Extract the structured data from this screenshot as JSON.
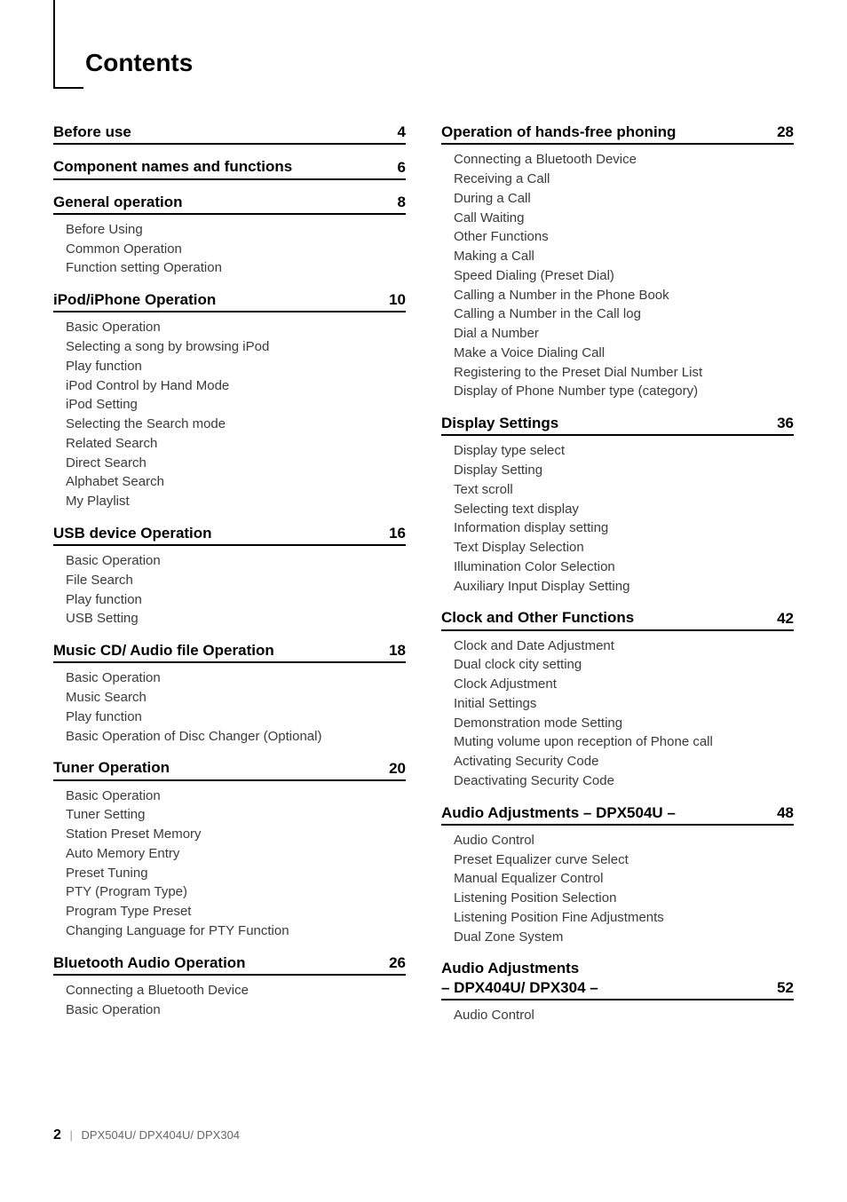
{
  "title": "Contents",
  "page_number": "2",
  "footer_models": "DPX504U/ DPX404U/ DPX304",
  "left": [
    {
      "title": "Before use",
      "page": "4",
      "items": []
    },
    {
      "title": "Component names and functions",
      "page": "6",
      "items": []
    },
    {
      "title": "General operation",
      "page": "8",
      "items": [
        "Before Using",
        "Common Operation",
        "Function setting Operation"
      ]
    },
    {
      "title": "iPod/iPhone Operation",
      "page": "10",
      "items": [
        "Basic Operation",
        "Selecting a song by browsing iPod",
        "Play function",
        "iPod Control by Hand Mode",
        "iPod Setting",
        "Selecting the Search mode",
        "Related Search",
        "Direct Search",
        "Alphabet Search",
        "My Playlist"
      ]
    },
    {
      "title": "USB device Operation",
      "page": "16",
      "items": [
        "Basic Operation",
        "File Search",
        "Play function",
        "USB Setting"
      ]
    },
    {
      "title": "Music CD/ Audio file Operation",
      "page": "18",
      "items": [
        "Basic Operation",
        "Music Search",
        "Play function",
        "Basic Operation of Disc Changer (Optional)"
      ]
    },
    {
      "title": "Tuner Operation",
      "page": "20",
      "items": [
        "Basic Operation",
        "Tuner Setting",
        "Station Preset Memory",
        "Auto Memory Entry",
        "Preset Tuning",
        "PTY (Program Type)",
        "Program Type Preset",
        "Changing Language for PTY Function"
      ]
    },
    {
      "title": "Bluetooth Audio Operation",
      "page": "26",
      "items": [
        "Connecting a Bluetooth Device",
        "Basic Operation"
      ]
    }
  ],
  "right": [
    {
      "title": "Operation of hands-free phoning",
      "page": "28",
      "items": [
        "Connecting a Bluetooth Device",
        "Receiving a Call",
        "During a Call",
        "Call Waiting",
        "Other Functions",
        "Making a Call",
        "Speed Dialing (Preset Dial)",
        "Calling a Number in the Phone Book",
        "Calling a Number in the Call log",
        "Dial a Number",
        "Make a Voice Dialing Call",
        "Registering to the Preset Dial Number List",
        "Display of Phone Number type (category)"
      ]
    },
    {
      "title": "Display Settings",
      "page": "36",
      "items": [
        "Display type select",
        "Display Setting",
        "Text scroll",
        "Selecting text display",
        "Information display setting",
        "Text Display Selection",
        "Illumination Color Selection",
        "Auxiliary Input Display Setting"
      ]
    },
    {
      "title": "Clock and Other Functions",
      "page": "42",
      "items": [
        "Clock and Date Adjustment",
        "Dual clock city setting",
        "Clock Adjustment",
        "Initial Settings",
        "Demonstration mode Setting",
        "Muting volume upon reception of Phone call",
        "Activating Security Code",
        "Deactivating Security Code"
      ]
    },
    {
      "title": "Audio Adjustments  – DPX504U –",
      "page": "48",
      "items": [
        "Audio Control",
        "Preset Equalizer curve Select",
        "Manual Equalizer Control",
        "Listening Position Selection",
        "Listening Position Fine Adjustments",
        "Dual Zone System"
      ]
    },
    {
      "title": "Audio Adjustments \n– DPX404U/ DPX304 –",
      "page": "52",
      "items": [
        "Audio Control"
      ]
    }
  ]
}
